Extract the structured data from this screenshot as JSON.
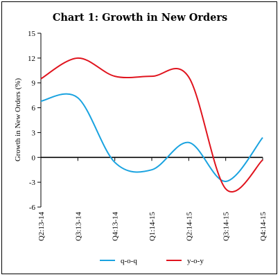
{
  "chart_data": {
    "type": "line",
    "title": "Chart 1: Growth in New Orders",
    "xlabel": "",
    "ylabel": "Growth in New Orders (%)",
    "ylim": [
      -6,
      15
    ],
    "yticks": [
      15,
      12,
      9,
      6,
      3,
      0,
      -3,
      -6
    ],
    "categories": [
      "Q2:13-14",
      "Q3:13-14",
      "Q4:13-14",
      "Q1:14-15",
      "Q2:14-15",
      "Q3:14-15",
      "Q4:14-15"
    ],
    "series": [
      {
        "name": "q-o-q",
        "color": "#1aa3e0",
        "values": [
          6.8,
          7.2,
          -0.6,
          -1.5,
          1.8,
          -2.9,
          2.4
        ]
      },
      {
        "name": "y-o-y",
        "color": "#e0141e",
        "values": [
          9.5,
          12.0,
          9.8,
          9.8,
          9.7,
          -3.8,
          -0.3
        ]
      }
    ],
    "legend_position": "bottom",
    "grid": false
  }
}
